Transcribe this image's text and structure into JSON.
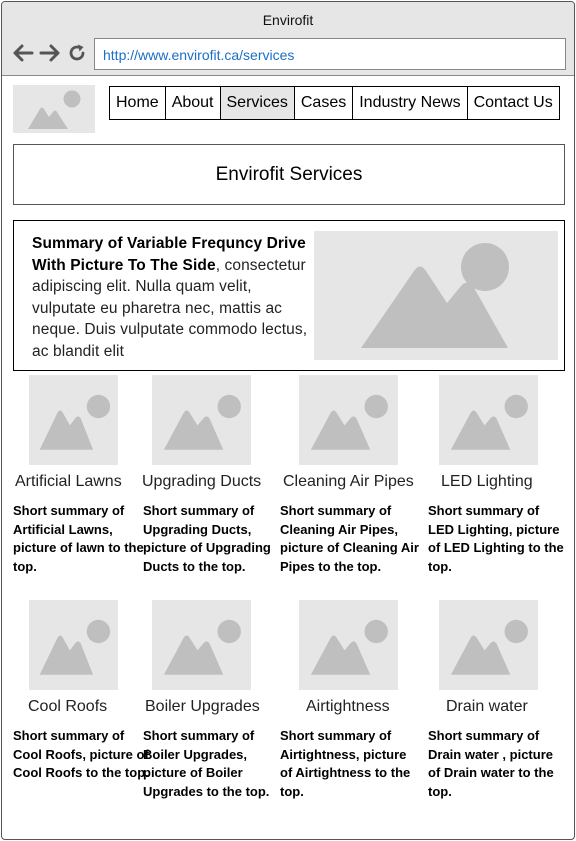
{
  "browser": {
    "title": "Envirofit",
    "url": "http://www.envirofit.ca/services",
    "back_icon": "arrow-left-icon",
    "forward_icon": "arrow-right-icon",
    "reload_icon": "reload-icon"
  },
  "nav": {
    "items": [
      "Home",
      "About",
      "Services",
      "Cases",
      "Industry News",
      "Contact Us"
    ],
    "active": "Services"
  },
  "page": {
    "heading": "Envirofit Services"
  },
  "summary": {
    "bold": "Summary of Variable Frequncy Drive With Picture To The Side",
    "text": ", consectetur adipiscing elit. Nulla quam velit, vulputate eu pharetra nec, mattis ac neque. Duis vulputate commodo lectus, ac blandit elit"
  },
  "services": [
    {
      "title": "Artificial Lawns",
      "desc": "Short summary of Artificial Lawns, picture of lawn to the top."
    },
    {
      "title": "Upgrading Ducts",
      "desc": "Short summary of Upgrading Ducts, picture of Upgrading Ducts to the top."
    },
    {
      "title": "Cleaning Air Pipes",
      "desc": "Short summary of Cleaning Air Pipes, picture of Cleaning Air Pipes to the top."
    },
    {
      "title": "LED Lighting",
      "desc": "Short summary of LED Lighting, picture of LED Lighting to the top."
    },
    {
      "title": "Cool Roofs",
      "desc": "Short summary of Cool Roofs, picture of Cool Roofs to the top."
    },
    {
      "title": "Boiler Upgrades",
      "desc": "Short summary of Boiler Upgrades, picture of Boiler Upgrades to the top."
    },
    {
      "title": "Airtightness",
      "desc": "Short summary of Airtightness, picture of Airtightness to the top."
    },
    {
      "title": "Drain water",
      "desc": "Short summary of  Drain water , picture of  Drain water   to the top."
    }
  ],
  "colors": {
    "placeholder_bg": "#e6e6e6",
    "placeholder_fg": "#bfbfbf",
    "link": "#1a6fc9",
    "active_tab": "#e6e6e6"
  }
}
